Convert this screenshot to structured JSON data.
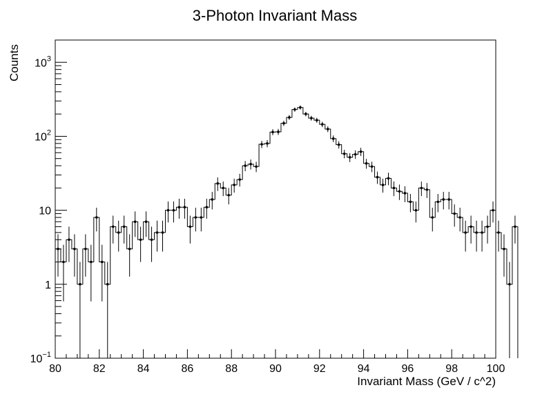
{
  "chart_data": {
    "type": "histogram",
    "title": "3-Photon Invariant Mass",
    "xlabel": "Invariant Mass (GeV / c^2)",
    "ylabel": "Counts",
    "xlim": [
      80,
      100
    ],
    "ylim": [
      0.1,
      2000
    ],
    "yscale": "log",
    "bin_width": 0.25,
    "x_ticks": [
      80,
      82,
      84,
      86,
      88,
      90,
      92,
      94,
      96,
      98,
      100
    ],
    "x_tick_labels": [
      "80",
      "82",
      "84",
      "86",
      "88",
      "90",
      "92",
      "94",
      "96",
      "98",
      "100"
    ],
    "y_ticks": [
      {
        "value": 0.1,
        "base": "10",
        "exp": "−1"
      },
      {
        "value": 1,
        "base": "1",
        "exp": ""
      },
      {
        "value": 10,
        "base": "10",
        "exp": ""
      },
      {
        "value": 100,
        "base": "10",
        "exp": "2"
      },
      {
        "value": 1000,
        "base": "10",
        "exp": "3"
      }
    ],
    "bin_edges_start": 80,
    "counts": [
      3,
      2,
      4,
      3,
      1,
      3,
      2,
      8,
      2,
      1,
      6,
      5,
      6,
      3,
      7,
      4,
      7,
      4,
      5,
      5,
      10,
      10,
      11,
      11,
      6,
      8,
      8,
      11,
      14,
      23,
      20,
      16,
      22,
      26,
      40,
      42,
      39,
      78,
      80,
      114,
      115,
      150,
      180,
      230,
      245,
      200,
      176,
      165,
      145,
      125,
      93,
      77,
      58,
      52,
      57,
      62,
      43,
      39,
      28,
      22,
      27,
      20,
      18,
      17,
      13,
      10,
      20,
      19,
      8,
      13,
      14,
      14,
      9,
      8,
      5,
      6,
      5,
      5,
      6,
      10,
      5,
      3,
      1,
      6
    ]
  }
}
